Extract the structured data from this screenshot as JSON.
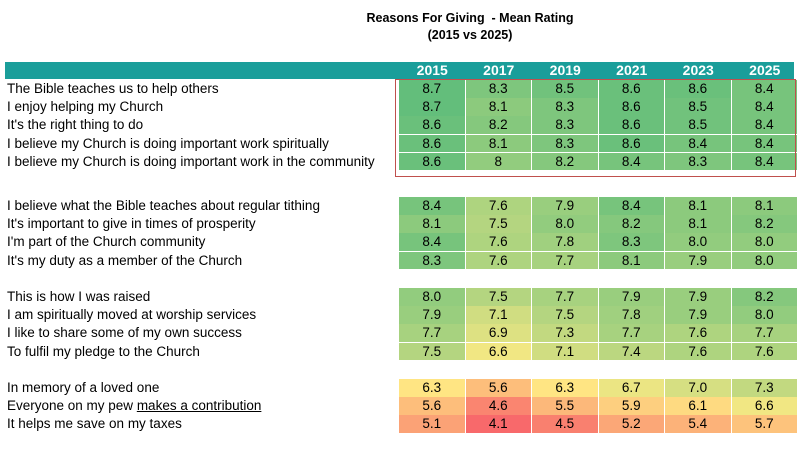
{
  "title_line1": "Reasons For Giving  - Mean Rating",
  "title_line2": "(2015 vs 2025)",
  "chart_data": {
    "type": "table",
    "title": "Reasons For Giving  - Mean Rating (2015 vs 2025)",
    "columns": [
      "2015",
      "2017",
      "2019",
      "2021",
      "2023",
      "2025"
    ],
    "groups": [
      {
        "highlighted": true,
        "rows": [
          {
            "label": "The Bible teaches us to help others",
            "values": [
              "8.7",
              "8.3",
              "8.5",
              "8.6",
              "8.6",
              "8.4"
            ]
          },
          {
            "label": "I enjoy helping my Church",
            "values": [
              "8.7",
              "8.1",
              "8.3",
              "8.6",
              "8.5",
              "8.4"
            ]
          },
          {
            "label": "It's the right thing to do",
            "values": [
              "8.6",
              "8.2",
              "8.3",
              "8.6",
              "8.5",
              "8.4"
            ]
          },
          {
            "label": "I believe my Church is doing important work spiritually",
            "values": [
              "8.6",
              "8.1",
              "8.3",
              "8.6",
              "8.4",
              "8.4"
            ]
          },
          {
            "label": "I believe my Church is doing important work in the community",
            "values": [
              "8.6",
              "8",
              "8.2",
              "8.4",
              "8.3",
              "8.4"
            ]
          }
        ]
      },
      {
        "highlighted": false,
        "rows": [
          {
            "label": "I believe what the Bible teaches about regular tithing",
            "values": [
              "8.4",
              "7.6",
              "7.9",
              "8.4",
              "8.1",
              "8.1"
            ]
          },
          {
            "label": "It's important to give in times of prosperity",
            "values": [
              "8.1",
              "7.5",
              "8.0",
              "8.2",
              "8.1",
              "8.2"
            ]
          },
          {
            "label": "I'm part of the Church community",
            "values": [
              "8.4",
              "7.6",
              "7.8",
              "8.3",
              "8.0",
              "8.0"
            ]
          },
          {
            "label": "It's my duty as a member of the Church",
            "values": [
              "8.3",
              "7.6",
              "7.7",
              "8.1",
              "7.9",
              "8.0"
            ]
          }
        ]
      },
      {
        "highlighted": false,
        "rows": [
          {
            "label": "This is how I was raised",
            "values": [
              "8.0",
              "7.5",
              "7.7",
              "7.9",
              "7.9",
              "8.2"
            ]
          },
          {
            "label": "I am spiritually moved at worship services",
            "values": [
              "7.9",
              "7.1",
              "7.5",
              "7.8",
              "7.9",
              "8.0"
            ]
          },
          {
            "label": "I like to share some of my own success",
            "values": [
              "7.7",
              "6.9",
              "7.3",
              "7.7",
              "7.6",
              "7.7"
            ]
          },
          {
            "label": "To fulfil my pledge to the Church",
            "values": [
              "7.5",
              "6.6",
              "7.1",
              "7.4",
              "7.6",
              "7.6"
            ]
          }
        ]
      },
      {
        "highlighted": false,
        "rows": [
          {
            "label": "In memory of a loved one",
            "values": [
              "6.3",
              "5.6",
              "6.3",
              "6.7",
              "7.0",
              "7.3"
            ]
          },
          {
            "label": "Everyone on my pew makes a contribution",
            "label_plain": "Everyone on my pew ",
            "label_underlined": "makes a contribution",
            "values": [
              "5.6",
              "4.6",
              "5.5",
              "5.9",
              "6.1",
              "6.6"
            ]
          },
          {
            "label": "It helps me save on my taxes",
            "values": [
              "5.1",
              "4.1",
              "4.5",
              "5.2",
              "5.4",
              "5.7"
            ]
          }
        ]
      }
    ],
    "color_scale": {
      "min": 4.1,
      "max": 8.7,
      "low": "#f8696b",
      "mid": "#ffeb84",
      "high": "#63be7b"
    }
  },
  "colors": {
    "header": "#1a9e9a",
    "highlight_border": "#c0504d"
  }
}
